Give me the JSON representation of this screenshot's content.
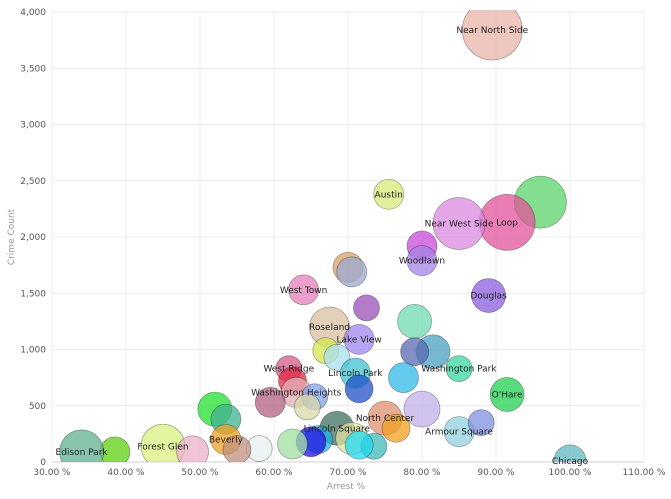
{
  "chart_data": {
    "type": "scatter",
    "title": "",
    "xlabel": "Arrest %",
    "ylabel": "Crime Count",
    "xlim": [
      30,
      110
    ],
    "ylim": [
      0,
      4000
    ],
    "x_ticks": [
      30,
      40,
      50,
      60,
      70,
      80,
      90,
      100,
      110
    ],
    "x_tick_labels": [
      "30.00 %",
      "40.00 %",
      "50.00 %",
      "60.00 %",
      "70.00 %",
      "80.00 %",
      "90.00 %",
      "100.00 %",
      "110.00 %"
    ],
    "y_ticks": [
      0,
      500,
      1000,
      1500,
      2000,
      2500,
      3000,
      3500,
      4000
    ],
    "y_tick_labels": [
      "0",
      "500",
      "1,000",
      "1,500",
      "2,000",
      "2,500",
      "3,000",
      "3,500",
      "4,000"
    ],
    "grid": true,
    "legend": "none",
    "bubbles": [
      {
        "label": "Near North Side",
        "x": 89.5,
        "y": 3840,
        "size": 60,
        "color": "#e8b4a8"
      },
      {
        "label": "",
        "x": 96.0,
        "y": 2310,
        "size": 52,
        "color": "#59d46a"
      },
      {
        "label": "Loop",
        "x": 91.5,
        "y": 2130,
        "size": 56,
        "color": "#e0539a"
      },
      {
        "label": "Near West Side",
        "x": 85.0,
        "y": 2120,
        "size": 52,
        "color": "#d98ae0"
      },
      {
        "label": "Austin",
        "x": 75.5,
        "y": 2380,
        "size": 30,
        "color": "#d7ec7a"
      },
      {
        "label": "",
        "x": 80.0,
        "y": 1920,
        "size": 30,
        "color": "#c84ad8"
      },
      {
        "label": "Woodlawn",
        "x": 80.0,
        "y": 1790,
        "size": 30,
        "color": "#a383e6"
      },
      {
        "label": "",
        "x": 70.0,
        "y": 1730,
        "size": 30,
        "color": "#d9a06a"
      },
      {
        "label": "",
        "x": 70.5,
        "y": 1690,
        "size": 30,
        "color": "#9aaad2"
      },
      {
        "label": "West Town",
        "x": 64.0,
        "y": 1530,
        "size": 30,
        "color": "#e47fb8"
      },
      {
        "label": "Douglas",
        "x": 89.0,
        "y": 1480,
        "size": 34,
        "color": "#8b5de0"
      },
      {
        "label": "",
        "x": 72.5,
        "y": 1370,
        "size": 26,
        "color": "#9b4fb8"
      },
      {
        "label": "",
        "x": 79.0,
        "y": 1250,
        "size": 34,
        "color": "#6edbb0"
      },
      {
        "label": "Roseland",
        "x": 67.5,
        "y": 1200,
        "size": 40,
        "color": "#d8c0a0"
      },
      {
        "label": "Lake View",
        "x": 71.5,
        "y": 1090,
        "size": 30,
        "color": "#9f86f0"
      },
      {
        "label": "",
        "x": 81.5,
        "y": 980,
        "size": 34,
        "color": "#4aa0c0"
      },
      {
        "label": "",
        "x": 79.0,
        "y": 980,
        "size": 28,
        "color": "#5a6ab0"
      },
      {
        "label": "",
        "x": 67.0,
        "y": 990,
        "size": 26,
        "color": "#d4e650"
      },
      {
        "label": "",
        "x": 68.5,
        "y": 930,
        "size": 26,
        "color": "#a8dff0"
      },
      {
        "label": "Washington Park",
        "x": 85.0,
        "y": 830,
        "size": 26,
        "color": "#3dd6a0"
      },
      {
        "label": "West Ridge",
        "x": 62.0,
        "y": 830,
        "size": 26,
        "color": "#d45a8a"
      },
      {
        "label": "Lincoln Park",
        "x": 71.0,
        "y": 790,
        "size": 30,
        "color": "#40c0d0"
      },
      {
        "label": "",
        "x": 77.5,
        "y": 750,
        "size": 30,
        "color": "#30b8e8"
      },
      {
        "label": "",
        "x": 62.5,
        "y": 720,
        "size": 28,
        "color": "#e02a40"
      },
      {
        "label": "O'Hare",
        "x": 91.5,
        "y": 600,
        "size": 34,
        "color": "#20d050"
      },
      {
        "label": "Washington Heights",
        "x": 63.0,
        "y": 620,
        "size": 30,
        "color": "#e0b0b8"
      },
      {
        "label": "",
        "x": 71.5,
        "y": 650,
        "size": 28,
        "color": "#2050c8"
      },
      {
        "label": "",
        "x": 65.5,
        "y": 580,
        "size": 26,
        "color": "#80a0e8"
      },
      {
        "label": "",
        "x": 52.0,
        "y": 470,
        "size": 34,
        "color": "#20e030"
      },
      {
        "label": "",
        "x": 53.5,
        "y": 380,
        "size": 30,
        "color": "#40b090"
      },
      {
        "label": "",
        "x": 59.5,
        "y": 530,
        "size": 30,
        "color": "#b06080"
      },
      {
        "label": "",
        "x": 64.5,
        "y": 490,
        "size": 26,
        "color": "#d8d8a8"
      },
      {
        "label": "",
        "x": 80.0,
        "y": 470,
        "size": 36,
        "color": "#c0b0e8"
      },
      {
        "label": "North Center",
        "x": 75.0,
        "y": 390,
        "size": 34,
        "color": "#e09070"
      },
      {
        "label": "",
        "x": 76.5,
        "y": 300,
        "size": 28,
        "color": "#f0a020"
      },
      {
        "label": "Armour Square",
        "x": 85.0,
        "y": 270,
        "size": 30,
        "color": "#90d0e0"
      },
      {
        "label": "",
        "x": 88.0,
        "y": 350,
        "size": 26,
        "color": "#8090e0"
      },
      {
        "label": "Lincoln Square",
        "x": 68.5,
        "y": 300,
        "size": 34,
        "color": "#407060"
      },
      {
        "label": "",
        "x": 70.5,
        "y": 210,
        "size": 32,
        "color": "#e0e0a0"
      },
      {
        "label": "",
        "x": 66.0,
        "y": 200,
        "size": 28,
        "color": "#20b0e0"
      },
      {
        "label": "",
        "x": 65.0,
        "y": 180,
        "size": 30,
        "color": "#2010e0"
      },
      {
        "label": "",
        "x": 73.5,
        "y": 140,
        "size": 26,
        "color": "#40b8b8"
      },
      {
        "label": "",
        "x": 71.5,
        "y": 150,
        "size": 28,
        "color": "#20d8f0"
      },
      {
        "label": "",
        "x": 62.5,
        "y": 160,
        "size": 30,
        "color": "#a0e0a0"
      },
      {
        "label": "",
        "x": 58.0,
        "y": 120,
        "size": 26,
        "color": "#e8f0f0"
      },
      {
        "label": "Beverly",
        "x": 53.5,
        "y": 200,
        "size": 30,
        "color": "#f0a020"
      },
      {
        "label": "",
        "x": 55.0,
        "y": 110,
        "size": 28,
        "color": "#c09080"
      },
      {
        "label": "Forest Glen",
        "x": 45.0,
        "y": 140,
        "size": 44,
        "color": "#d8f080"
      },
      {
        "label": "",
        "x": 49.0,
        "y": 90,
        "size": 32,
        "color": "#e8b0c8"
      },
      {
        "label": "",
        "x": 38.5,
        "y": 90,
        "size": 30,
        "color": "#60d010"
      },
      {
        "label": "Edison Park",
        "x": 34.0,
        "y": 90,
        "size": 44,
        "color": "#60b090"
      },
      {
        "label": "Chicago",
        "x": 100.0,
        "y": 10,
        "size": 32,
        "color": "#60b8c0"
      }
    ]
  }
}
